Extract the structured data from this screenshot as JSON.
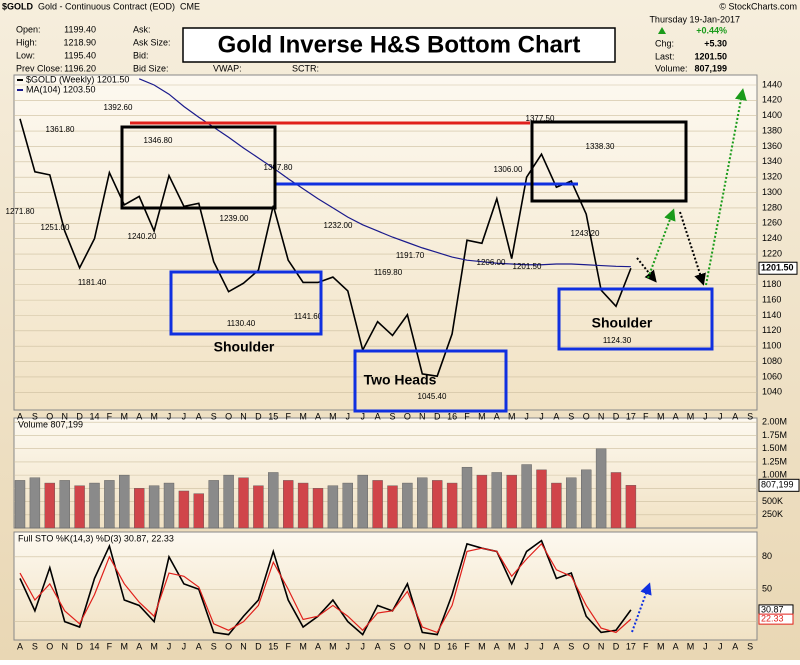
{
  "header": {
    "symbol": "$GOLD",
    "description": "Gold - Continuous Contract (EOD)",
    "exchange": "CME",
    "copyright": "© StockCharts.com",
    "fields": [
      [
        "Open:",
        "1199.40"
      ],
      [
        "High:",
        "1218.90"
      ],
      [
        "Low:",
        "1195.40"
      ],
      [
        "Prev Close:",
        "1196.20"
      ]
    ],
    "fields2": [
      "Ask:",
      "Ask Size:",
      "Bid:",
      "Bid Size:"
    ],
    "vwap": "VWAP:",
    "sctr": "SCTR:",
    "date": "Thursday  19-Jan-2017",
    "pct": "+0.44%",
    "chg_label": "Chg:",
    "chg": "+5.30",
    "last_label": "Last:",
    "last": "1201.50",
    "volume_label": "Volume:",
    "volume": "807,199"
  },
  "chart_data": [
    {
      "type": "line",
      "title": "Gold Inverse H&S Bottom Chart",
      "categories": [
        "A",
        "S",
        "O",
        "N",
        "D",
        "14",
        "F",
        "M",
        "A",
        "M",
        "J",
        "J",
        "A",
        "S",
        "O",
        "N",
        "D",
        "15",
        "F",
        "M",
        "A",
        "M",
        "J",
        "J",
        "A",
        "S",
        "O",
        "N",
        "D",
        "16",
        "F",
        "M",
        "A",
        "M",
        "J",
        "J",
        "A",
        "S",
        "O",
        "N",
        "D",
        "17",
        "F",
        "M",
        "A",
        "M",
        "J",
        "J",
        "A",
        "S"
      ],
      "series": [
        {
          "name": "$GOLD (Weekly) 1201.50",
          "color": "#000000",
          "values": [
            1396,
            1327,
            1323,
            1250,
            1202,
            1240,
            1326,
            1284,
            1295,
            1250,
            1322,
            1282,
            1286,
            1210,
            1171,
            1182,
            1199,
            1283,
            1212,
            1183,
            1183,
            1190,
            1172,
            1095,
            1132,
            1114,
            1141,
            1064,
            1061,
            1116,
            1238,
            1234,
            1292,
            1214,
            1320,
            1350,
            1307,
            1315,
            1272,
            1173,
            1152,
            1201.5,
            null,
            null,
            null,
            null,
            null,
            null,
            null,
            null
          ]
        },
        {
          "name": "MA(104) 1203.50",
          "color": "#1a1a8c",
          "values": [
            null,
            null,
            null,
            null,
            null,
            null,
            null,
            null,
            1448,
            1440,
            1428,
            1412,
            1398,
            1385,
            1372,
            1358,
            1345,
            1332,
            1318,
            1305,
            1292,
            1280,
            1268,
            1258,
            1250,
            1242,
            1235,
            1228,
            1222,
            1216,
            1212,
            1210,
            1208,
            1207,
            1206,
            1206,
            1207,
            1207,
            1206,
            1205,
            1204,
            1203.5,
            null,
            null,
            null,
            null,
            null,
            null,
            null,
            null
          ]
        }
      ],
      "ylim": [
        1017,
        1453
      ],
      "yticks": [
        1040,
        1060,
        1080,
        1100,
        1120,
        1140,
        1160,
        1180,
        1200,
        1220,
        1240,
        1260,
        1280,
        1300,
        1320,
        1340,
        1360,
        1380,
        1400,
        1420,
        1440
      ],
      "last_tag": "1201.50",
      "price_labels": [
        {
          "value": 1271.8,
          "label": "1271.80"
        },
        {
          "value": 1392.6,
          "label": "1392.60"
        },
        {
          "value": 1361.8,
          "label": "1361.80"
        },
        {
          "value": 1251,
          "label": "1251.00"
        },
        {
          "value": 1181.4,
          "label": "1181.40"
        },
        {
          "value": 1346.8,
          "label": "1346.80"
        },
        {
          "value": 1240.2,
          "label": "1240.20"
        },
        {
          "value": 1239,
          "label": "1239.00"
        },
        {
          "value": 1307.8,
          "label": "1307.80"
        },
        {
          "value": 1130.4,
          "label": "1130.40"
        },
        {
          "value": 1232,
          "label": "1232.00"
        },
        {
          "value": 1141.6,
          "label": "1141.60"
        },
        {
          "value": 1169.8,
          "label": "1169.80"
        },
        {
          "value": 1191.7,
          "label": "1191.70"
        },
        {
          "value": 1045.4,
          "label": "1045.40"
        },
        {
          "value": 1306,
          "label": "1306.00"
        },
        {
          "value": 1206,
          "label": "1206.00"
        },
        {
          "value": 1201.5,
          "label": "1201.50"
        },
        {
          "value": 1377.5,
          "label": "1377.50"
        },
        {
          "value": 1338.3,
          "label": "1338.30"
        },
        {
          "value": 1243.2,
          "label": "1243.20"
        },
        {
          "value": 1124.3,
          "label": "1124.30"
        }
      ],
      "annotations": [
        "Shoulder",
        "Two Heads",
        "Shoulder"
      ]
    },
    {
      "type": "bar",
      "title": "Volume 807,199",
      "last_tag": "807,199",
      "values": [
        900000,
        950000,
        850000,
        900000,
        800000,
        850000,
        900000,
        1000000,
        750000,
        800000,
        850000,
        700000,
        650000,
        900000,
        1000000,
        950000,
        800000,
        1050000,
        900000,
        850000,
        750000,
        800000,
        850000,
        1000000,
        900000,
        800000,
        850000,
        950000,
        900000,
        850000,
        1150000,
        1000000,
        1050000,
        1000000,
        1200000,
        1100000,
        850000,
        950000,
        1100000,
        1500000,
        1050000,
        807199
      ],
      "ylim": [
        0,
        2080000
      ],
      "yticks": [
        {
          "value": 250000,
          "label": "250K"
        },
        {
          "value": 500000,
          "label": "500K"
        },
        {
          "value": 750000,
          "label": "750K"
        },
        {
          "value": 1000000,
          "label": "1.00M"
        },
        {
          "value": 1250000,
          "label": "1.25M"
        },
        {
          "value": 1500000,
          "label": "1.50M"
        },
        {
          "value": 1750000,
          "label": "1.75M"
        },
        {
          "value": 2000000,
          "label": "2.00M"
        }
      ]
    },
    {
      "type": "line",
      "title": "Full STO %K(14,3) %D(3) 30.87, 22.33",
      "series": [
        {
          "name": "%K",
          "color": "#000000",
          "values": [
            60,
            30,
            70,
            20,
            15,
            60,
            90,
            40,
            35,
            20,
            80,
            55,
            50,
            10,
            8,
            25,
            40,
            85,
            40,
            15,
            25,
            40,
            20,
            8,
            35,
            30,
            55,
            10,
            8,
            45,
            92,
            88,
            85,
            55,
            85,
            95,
            60,
            65,
            25,
            10,
            12,
            30.87
          ],
          "value_labels": [
            "30.87"
          ]
        },
        {
          "name": "%D",
          "color": "#e0201b",
          "values": [
            65,
            40,
            55,
            30,
            18,
            45,
            80,
            55,
            38,
            25,
            65,
            62,
            52,
            18,
            12,
            20,
            35,
            75,
            50,
            22,
            25,
            35,
            25,
            12,
            28,
            30,
            48,
            15,
            10,
            35,
            85,
            88,
            85,
            62,
            78,
            92,
            68,
            62,
            35,
            14,
            10,
            22.33
          ],
          "value_labels": [
            "22.33"
          ]
        }
      ],
      "ylim": [
        3,
        103
      ],
      "yticks": [
        20,
        50,
        80
      ]
    }
  ]
}
